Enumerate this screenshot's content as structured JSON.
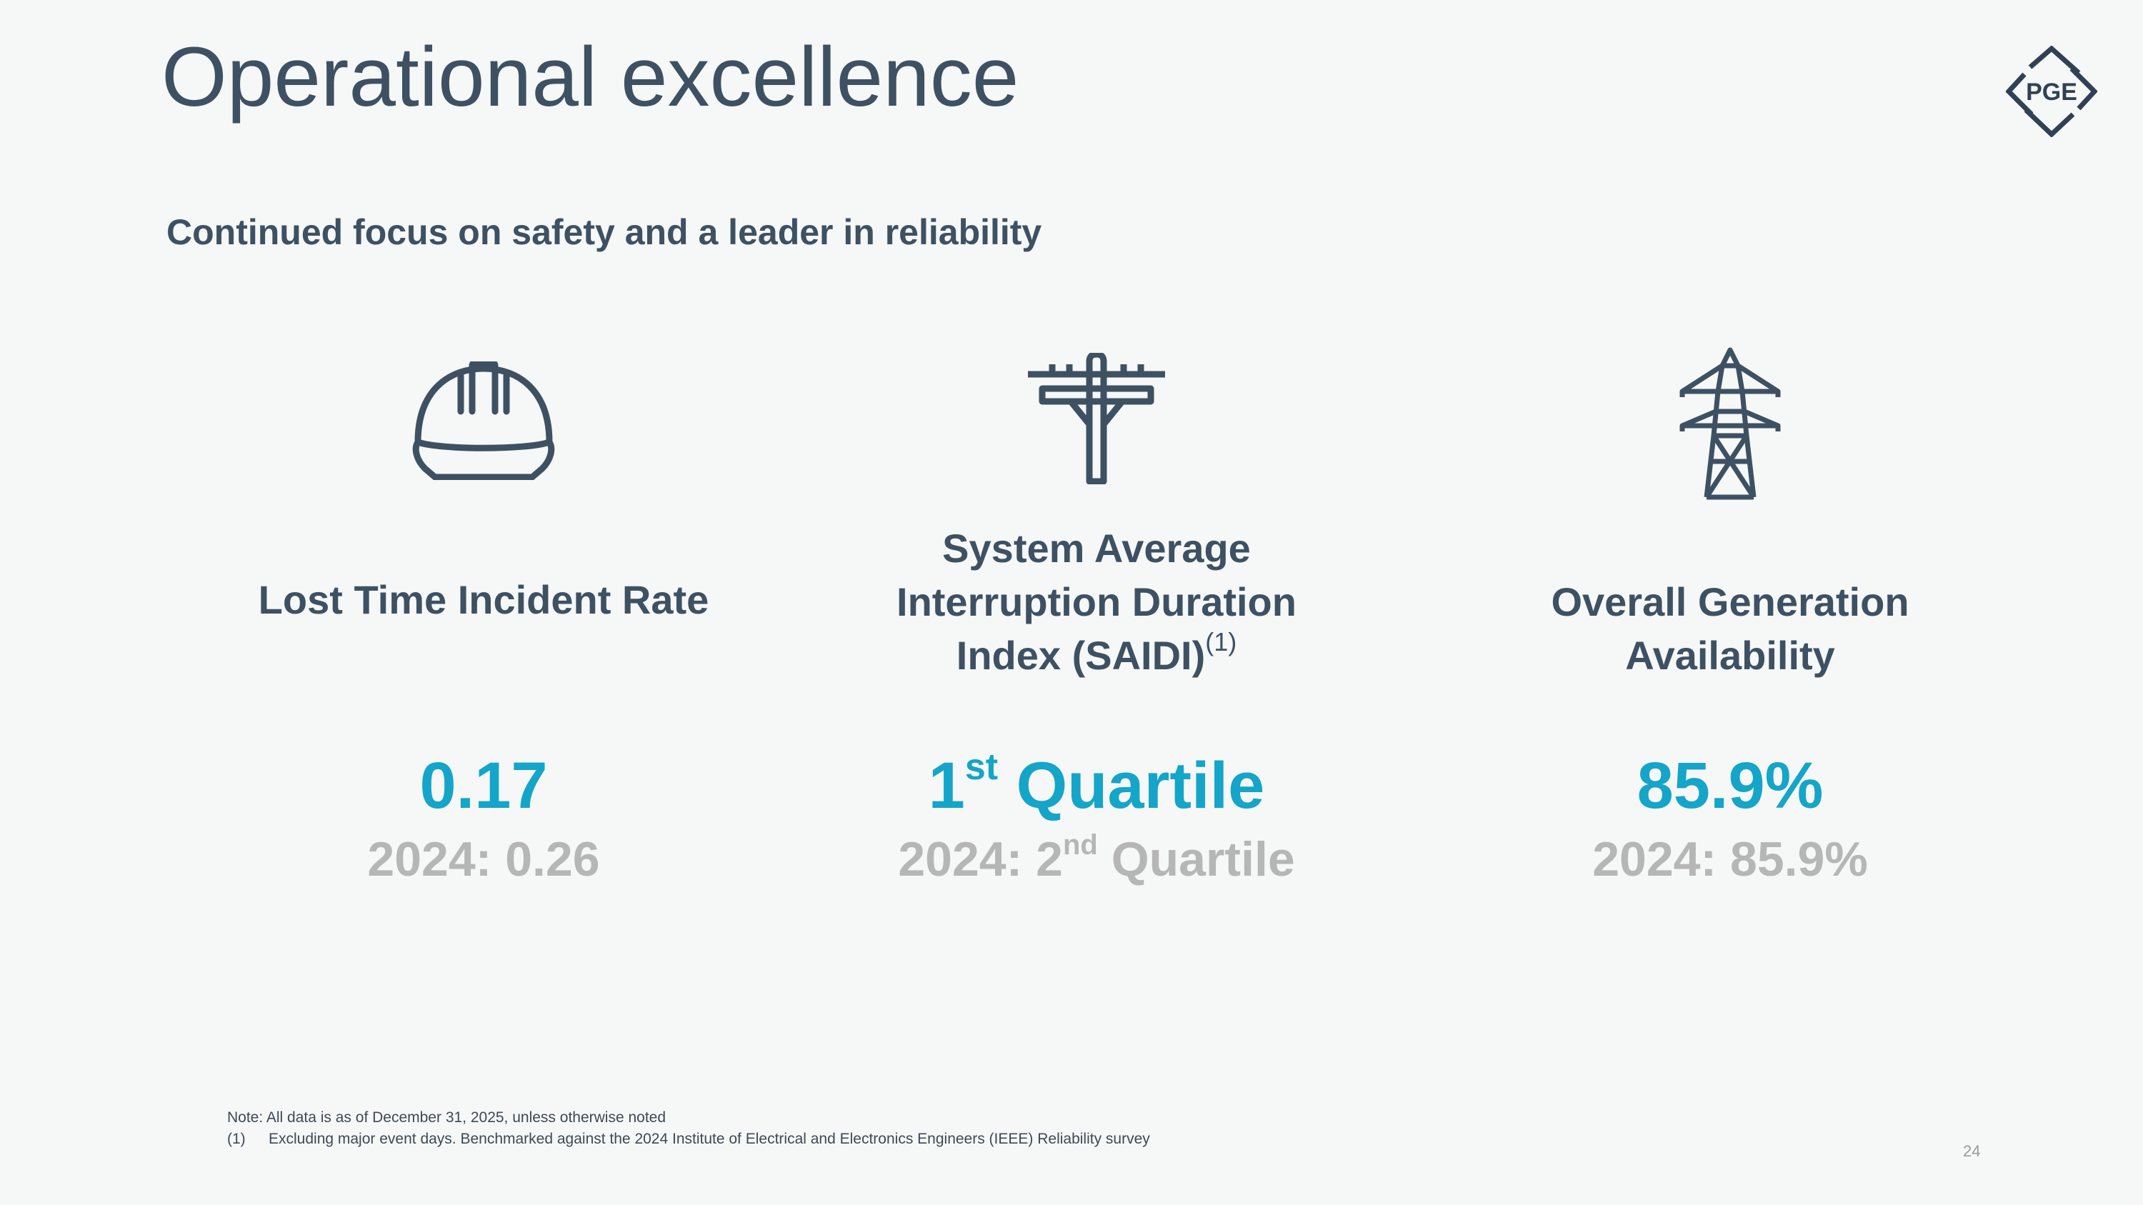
{
  "header": {
    "title": "Operational excellence",
    "logo_text": "PGE"
  },
  "subtitle": "Continued focus on safety and a leader in reliability",
  "metrics": [
    {
      "icon": "hard-hat-icon",
      "label": "Lost Time Incident Rate",
      "value": "0.17",
      "prior": "2024: 0.26"
    },
    {
      "icon": "utility-pole-icon",
      "label_line1": "System Average",
      "label_line2": "Interruption Duration",
      "label_line3": "Index (SAIDI)",
      "label_footnote": "(1)",
      "value_number": "1",
      "value_ordinal": "st",
      "value_word": " Quartile",
      "prior_prefix": "2024: 2",
      "prior_ordinal": "nd",
      "prior_word": " Quartile"
    },
    {
      "icon": "transmission-tower-icon",
      "label_line1": "Overall Generation",
      "label_line2": "Availability",
      "value": "85.9%",
      "prior": "2024: 85.9%"
    }
  ],
  "footnotes": {
    "note": "Note: All data is as of December 31, 2025, unless otherwise noted",
    "fn1_marker": "(1)",
    "fn1_text": "Excluding major event days. Benchmarked against the 2024 Institute of Electrical and Electronics Engineers (IEEE) Reliability survey"
  },
  "page_number": "24",
  "colors": {
    "primary_text": "#3d5163",
    "accent": "#14a5c8",
    "muted": "#b6b6b6",
    "background": "#f6f7f7"
  }
}
